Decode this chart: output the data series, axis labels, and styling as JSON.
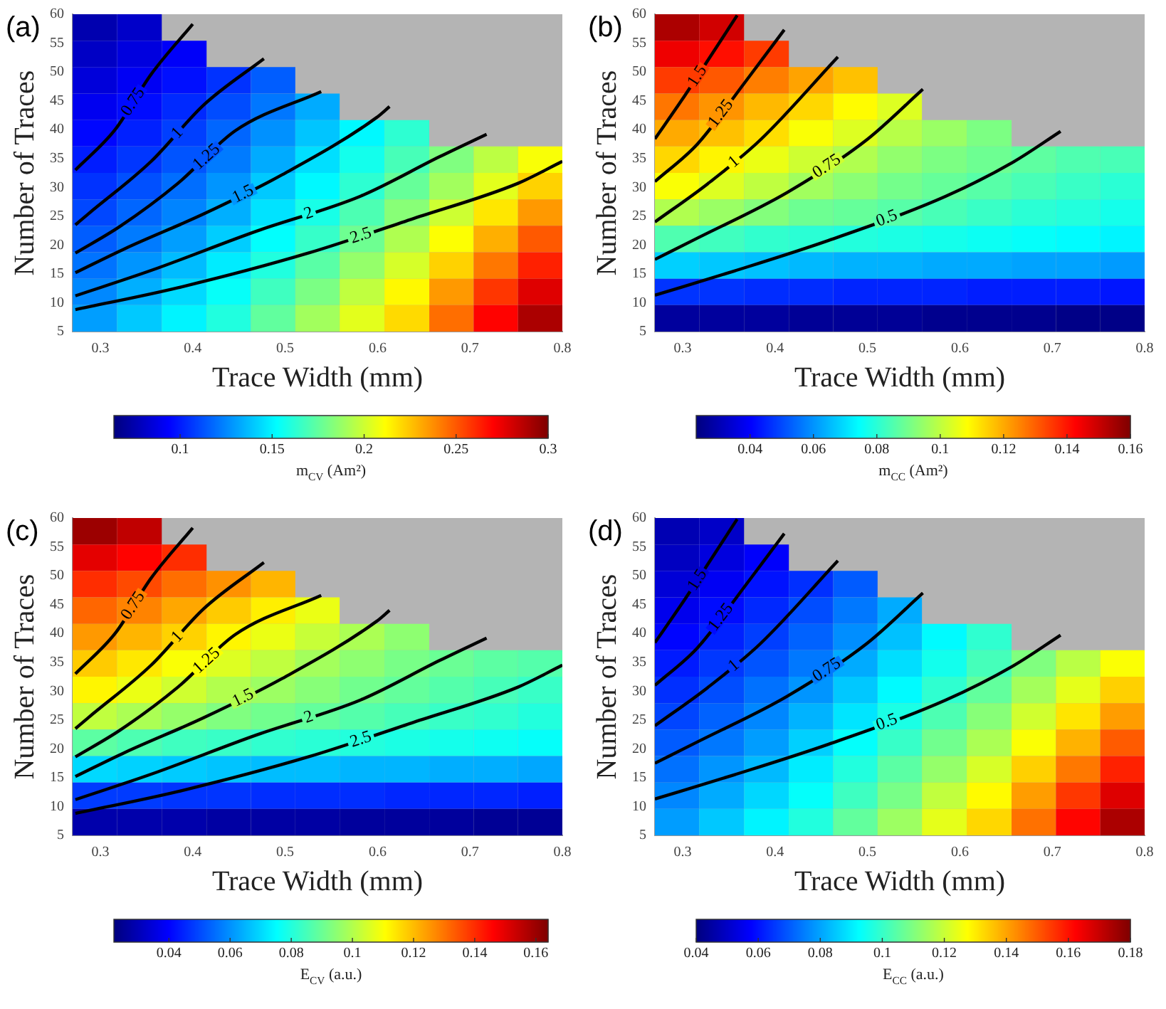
{
  "chart_data": [
    {
      "type": "heatmap",
      "annotations": [
        "(a)"
      ],
      "xlabel": "Trace Width (mm)",
      "ylabel": "Number of Traces",
      "clabel": "m$_{CV}$ (Am²)",
      "clim": [
        0.064,
        0.3
      ],
      "cticks": [
        0.1,
        0.15,
        0.2,
        0.25,
        0.3
      ],
      "x": [
        0.294,
        0.342,
        0.391,
        0.439,
        0.487,
        0.535,
        0.583,
        0.632,
        0.68,
        0.728,
        0.776
      ],
      "xlim": [
        0.27,
        0.8
      ],
      "xticks": [
        0.3,
        0.4,
        0.5,
        0.6,
        0.7,
        0.8
      ],
      "ylim": [
        5,
        60
      ],
      "yticks": [
        5,
        10,
        15,
        20,
        25,
        30,
        35,
        40,
        45,
        50,
        55,
        60
      ],
      "cells": [
        [
          0.075,
          0.081,
          null,
          null,
          null,
          null,
          null,
          null,
          null,
          null,
          null
        ],
        [
          0.08,
          0.086,
          0.092,
          null,
          null,
          null,
          null,
          null,
          null,
          null,
          null
        ],
        [
          0.085,
          0.091,
          0.097,
          0.105,
          0.115,
          null,
          null,
          null,
          null,
          null,
          null
        ],
        [
          0.09,
          0.096,
          0.103,
          0.111,
          0.121,
          0.133,
          null,
          null,
          null,
          null,
          null
        ],
        [
          0.095,
          0.101,
          0.108,
          0.117,
          0.127,
          0.139,
          0.151,
          0.163,
          null,
          null,
          null
        ],
        [
          0.1,
          0.106,
          0.113,
          0.122,
          0.133,
          0.145,
          0.157,
          0.169,
          0.182,
          0.196,
          0.21
        ],
        [
          0.105,
          0.112,
          0.119,
          0.128,
          0.14,
          0.151,
          0.163,
          0.176,
          0.19,
          0.205,
          0.222
        ],
        [
          0.11,
          0.117,
          0.124,
          0.134,
          0.146,
          0.158,
          0.17,
          0.184,
          0.2,
          0.217,
          0.235
        ],
        [
          0.115,
          0.122,
          0.13,
          0.141,
          0.153,
          0.165,
          0.178,
          0.193,
          0.211,
          0.23,
          0.25
        ],
        [
          0.12,
          0.128,
          0.137,
          0.148,
          0.16,
          0.173,
          0.187,
          0.202,
          0.222,
          0.243,
          0.263
        ],
        [
          0.125,
          0.134,
          0.144,
          0.154,
          0.167,
          0.181,
          0.197,
          0.213,
          0.235,
          0.258,
          0.278
        ],
        [
          0.13,
          0.14,
          0.15,
          0.16,
          0.175,
          0.19,
          0.205,
          0.22,
          0.245,
          0.27,
          0.29
        ]
      ],
      "series": [
        {
          "type": "line",
          "name": "0.75",
          "color": "#000000",
          "x": [
            0.273,
            0.316,
            0.355,
            0.4
          ],
          "values": [
            33,
            40,
            49.6,
            58.3
          ]
        },
        {
          "type": "line",
          "name": "1",
          "color": "#000000",
          "x": [
            0.273,
            0.287,
            0.355,
            0.412,
            0.477
          ],
          "values": [
            23.5,
            25.4,
            34.5,
            44.3,
            52.3
          ]
        },
        {
          "type": "line",
          "name": "1.25",
          "color": "#000000",
          "x": [
            0.273,
            0.321,
            0.384,
            0.446,
            0.539
          ],
          "values": [
            18.6,
            23.2,
            30.7,
            39.8,
            46.6
          ]
        },
        {
          "type": "line",
          "name": "1.5",
          "color": "#000000",
          "x": [
            0.273,
            0.327,
            0.412,
            0.497,
            0.599,
            0.613
          ],
          "values": [
            15.2,
            19.4,
            25.4,
            32.2,
            42.1,
            44
          ]
        },
        {
          "type": "line",
          "name": "2",
          "color": "#000000",
          "x": [
            0.273,
            0.355,
            0.469,
            0.582,
            0.667,
            0.718
          ],
          "values": [
            11.2,
            15.6,
            22.4,
            28.5,
            35.3,
            39.2
          ]
        },
        {
          "type": "line",
          "name": "2.5",
          "color": "#000000",
          "x": [
            0.273,
            0.384,
            0.525,
            0.639,
            0.752,
            0.8
          ],
          "values": [
            8.8,
            12.6,
            18.6,
            24.6,
            30.7,
            34.5
          ]
        }
      ]
    },
    {
      "type": "heatmap",
      "annotations": [
        "(b)"
      ],
      "xlabel": "Trace Width (mm)",
      "ylabel": "Number of Traces",
      "clabel": "m$_{CC}$ (Am²)",
      "clim": [
        0.023,
        0.16
      ],
      "cticks": [
        0.04,
        0.06,
        0.08,
        0.1,
        0.12,
        0.14,
        0.16
      ],
      "x": [
        0.294,
        0.342,
        0.391,
        0.439,
        0.487,
        0.535,
        0.583,
        0.632,
        0.68,
        0.728,
        0.776
      ],
      "xlim": [
        0.27,
        0.8
      ],
      "xticks": [
        0.3,
        0.4,
        0.5,
        0.6,
        0.7,
        0.8
      ],
      "ylim": [
        5,
        60
      ],
      "yticks": [
        5,
        10,
        15,
        20,
        25,
        30,
        35,
        40,
        45,
        50,
        55,
        60
      ],
      "cells": [
        [
          0.154,
          0.149,
          null,
          null,
          null,
          null,
          null,
          null,
          null,
          null,
          null
        ],
        [
          0.145,
          0.141,
          0.135,
          null,
          null,
          null,
          null,
          null,
          null,
          null,
          null
        ],
        [
          0.135,
          0.131,
          0.126,
          0.121,
          0.117,
          null,
          null,
          null,
          null,
          null,
          null
        ],
        [
          0.127,
          0.123,
          0.118,
          0.114,
          0.109,
          0.104,
          null,
          null,
          null,
          null,
          null
        ],
        [
          0.12,
          0.117,
          0.113,
          0.108,
          0.104,
          0.099,
          0.095,
          0.091,
          null,
          null,
          null
        ],
        [
          0.114,
          0.11,
          0.106,
          0.102,
          0.098,
          0.094,
          0.091,
          0.089,
          0.087,
          0.085,
          0.084
        ],
        [
          0.108,
          0.104,
          0.1,
          0.096,
          0.093,
          0.09,
          0.088,
          0.086,
          0.084,
          0.082,
          0.08
        ],
        [
          0.098,
          0.095,
          0.092,
          0.089,
          0.088,
          0.086,
          0.084,
          0.082,
          0.08,
          0.079,
          0.077
        ],
        [
          0.085,
          0.083,
          0.081,
          0.08,
          0.079,
          0.078,
          0.077,
          0.076,
          0.075,
          0.074,
          0.073
        ],
        [
          0.068,
          0.067,
          0.066,
          0.065,
          0.064,
          0.064,
          0.063,
          0.063,
          0.062,
          0.062,
          0.061
        ],
        [
          0.047,
          0.047,
          0.046,
          0.046,
          0.045,
          0.045,
          0.045,
          0.044,
          0.044,
          0.044,
          0.043
        ],
        [
          0.027,
          0.027,
          0.027,
          0.026,
          0.026,
          0.026,
          0.025,
          0.025,
          0.025,
          0.024,
          0.024
        ]
      ],
      "series": [
        {
          "type": "line",
          "name": "1.5",
          "color": "#000000",
          "x": [
            0.27,
            0.299,
            0.333,
            0.359
          ],
          "values": [
            38.4,
            45.1,
            53.4,
            59.8
          ]
        },
        {
          "type": "line",
          "name": "1.25",
          "color": "#000000",
          "x": [
            0.27,
            0.316,
            0.367,
            0.41
          ],
          "values": [
            31,
            37.5,
            48.1,
            57.3
          ]
        },
        {
          "type": "line",
          "name": "1",
          "color": "#000000",
          "x": [
            0.27,
            0.327,
            0.384,
            0.468
          ],
          "values": [
            24,
            30.6,
            38.2,
            52.6
          ]
        },
        {
          "type": "line",
          "name": "0.75",
          "color": "#000000",
          "x": [
            0.27,
            0.316,
            0.413,
            0.499,
            0.56
          ],
          "values": [
            17.5,
            21.2,
            29.1,
            38.2,
            47
          ]
        },
        {
          "type": "line",
          "name": "0.5",
          "color": "#000000",
          "x": [
            0.27,
            0.356,
            0.458,
            0.584,
            0.658,
            0.709
          ],
          "values": [
            11.3,
            15.5,
            20.8,
            28.4,
            34.4,
            39.7
          ]
        }
      ]
    },
    {
      "type": "heatmap",
      "annotations": [
        "(c)"
      ],
      "xlabel": "Trace Width (mm)",
      "ylabel": "Number of Traces",
      "clabel": "E$_{CV}$ (a.u.)",
      "clim": [
        0.022,
        0.164
      ],
      "cticks": [
        0.04,
        0.06,
        0.08,
        0.1,
        0.12,
        0.14,
        0.16
      ],
      "x": [
        0.294,
        0.342,
        0.391,
        0.439,
        0.487,
        0.535,
        0.583,
        0.632,
        0.68,
        0.728,
        0.776
      ],
      "xlim": [
        0.27,
        0.8
      ],
      "xticks": [
        0.3,
        0.4,
        0.5,
        0.6,
        0.7,
        0.8
      ],
      "ylim": [
        5,
        60
      ],
      "yticks": [
        5,
        10,
        15,
        20,
        25,
        30,
        35,
        40,
        45,
        50,
        55,
        60
      ],
      "cells": [
        [
          0.16,
          0.155,
          null,
          null,
          null,
          null,
          null,
          null,
          null,
          null,
          null
        ],
        [
          0.15,
          0.146,
          0.14,
          null,
          null,
          null,
          null,
          null,
          null,
          null,
          null
        ],
        [
          0.14,
          0.136,
          0.131,
          0.126,
          0.121,
          null,
          null,
          null,
          null,
          null,
          null
        ],
        [
          0.132,
          0.128,
          0.123,
          0.118,
          0.113,
          0.108,
          null,
          null,
          null,
          null,
          null
        ],
        [
          0.125,
          0.121,
          0.117,
          0.112,
          0.108,
          0.103,
          0.099,
          0.095,
          null,
          null,
          null
        ],
        [
          0.118,
          0.114,
          0.11,
          0.106,
          0.102,
          0.098,
          0.095,
          0.092,
          0.09,
          0.088,
          0.087
        ],
        [
          0.112,
          0.108,
          0.104,
          0.1,
          0.097,
          0.094,
          0.091,
          0.089,
          0.087,
          0.085,
          0.083
        ],
        [
          0.102,
          0.099,
          0.096,
          0.093,
          0.091,
          0.089,
          0.087,
          0.085,
          0.083,
          0.082,
          0.08
        ],
        [
          0.088,
          0.086,
          0.084,
          0.083,
          0.082,
          0.081,
          0.08,
          0.079,
          0.078,
          0.077,
          0.076
        ],
        [
          0.07,
          0.069,
          0.068,
          0.067,
          0.066,
          0.066,
          0.065,
          0.065,
          0.064,
          0.064,
          0.063
        ],
        [
          0.048,
          0.048,
          0.047,
          0.047,
          0.046,
          0.046,
          0.046,
          0.045,
          0.045,
          0.045,
          0.044
        ],
        [
          0.028,
          0.028,
          0.028,
          0.027,
          0.027,
          0.027,
          0.026,
          0.026,
          0.026,
          0.025,
          0.025
        ]
      ],
      "series": [
        {
          "type": "line",
          "name": "0.75",
          "color": "#000000",
          "x": [
            0.273,
            0.316,
            0.355,
            0.4
          ],
          "values": [
            33,
            40,
            49.6,
            58.3
          ]
        },
        {
          "type": "line",
          "name": "1",
          "color": "#000000",
          "x": [
            0.273,
            0.287,
            0.355,
            0.412,
            0.477
          ],
          "values": [
            23.5,
            25.4,
            34.5,
            44.3,
            52.3
          ]
        },
        {
          "type": "line",
          "name": "1.25",
          "color": "#000000",
          "x": [
            0.273,
            0.321,
            0.384,
            0.446,
            0.539
          ],
          "values": [
            18.6,
            23.2,
            30.7,
            39.8,
            46.6
          ]
        },
        {
          "type": "line",
          "name": "1.5",
          "color": "#000000",
          "x": [
            0.273,
            0.327,
            0.412,
            0.497,
            0.599,
            0.613
          ],
          "values": [
            15.2,
            19.4,
            25.4,
            32.2,
            42.1,
            44
          ]
        },
        {
          "type": "line",
          "name": "2",
          "color": "#000000",
          "x": [
            0.273,
            0.355,
            0.469,
            0.582,
            0.667,
            0.718
          ],
          "values": [
            11.2,
            15.6,
            22.4,
            28.5,
            35.3,
            39.2
          ]
        },
        {
          "type": "line",
          "name": "2.5",
          "color": "#000000",
          "x": [
            0.273,
            0.384,
            0.525,
            0.639,
            0.752,
            0.8
          ],
          "values": [
            8.8,
            12.6,
            18.6,
            24.6,
            30.7,
            34.5
          ]
        }
      ]
    },
    {
      "type": "heatmap",
      "annotations": [
        "(d)"
      ],
      "xlabel": "Trace Width (mm)",
      "ylabel": "Number of Traces",
      "clabel": "E$_{CC}$ (a.u.)",
      "clim": [
        0.04,
        0.18
      ],
      "cticks": [
        0.04,
        0.06,
        0.08,
        0.1,
        0.12,
        0.14,
        0.16,
        0.18
      ],
      "x": [
        0.294,
        0.342,
        0.391,
        0.439,
        0.487,
        0.535,
        0.583,
        0.632,
        0.68,
        0.728,
        0.776
      ],
      "xlim": [
        0.27,
        0.8
      ],
      "xticks": [
        0.3,
        0.4,
        0.5,
        0.6,
        0.7,
        0.8
      ],
      "ylim": [
        5,
        60
      ],
      "yticks": [
        5,
        10,
        15,
        20,
        25,
        30,
        35,
        40,
        45,
        50,
        55,
        60
      ],
      "cells": [
        [
          0.047,
          0.05,
          null,
          null,
          null,
          null,
          null,
          null,
          null,
          null,
          null
        ],
        [
          0.049,
          0.053,
          0.057,
          null,
          null,
          null,
          null,
          null,
          null,
          null,
          null
        ],
        [
          0.052,
          0.056,
          0.06,
          0.064,
          0.07,
          null,
          null,
          null,
          null,
          null,
          null
        ],
        [
          0.055,
          0.059,
          0.063,
          0.068,
          0.074,
          0.081,
          null,
          null,
          null,
          null,
          null
        ],
        [
          0.058,
          0.062,
          0.066,
          0.071,
          0.077,
          0.084,
          0.092,
          0.099,
          null,
          null,
          null
        ],
        [
          0.061,
          0.065,
          0.069,
          0.074,
          0.081,
          0.088,
          0.095,
          0.102,
          0.11,
          0.118,
          0.127
        ],
        [
          0.064,
          0.068,
          0.073,
          0.078,
          0.085,
          0.092,
          0.099,
          0.106,
          0.115,
          0.124,
          0.134
        ],
        [
          0.067,
          0.071,
          0.076,
          0.082,
          0.089,
          0.096,
          0.103,
          0.111,
          0.121,
          0.131,
          0.141
        ],
        [
          0.07,
          0.074,
          0.079,
          0.086,
          0.093,
          0.1,
          0.108,
          0.116,
          0.127,
          0.138,
          0.15
        ],
        [
          0.073,
          0.078,
          0.083,
          0.09,
          0.097,
          0.105,
          0.113,
          0.122,
          0.134,
          0.146,
          0.158
        ],
        [
          0.076,
          0.081,
          0.087,
          0.093,
          0.101,
          0.109,
          0.119,
          0.128,
          0.141,
          0.155,
          0.167
        ],
        [
          0.079,
          0.085,
          0.091,
          0.097,
          0.106,
          0.114,
          0.124,
          0.133,
          0.147,
          0.162,
          0.174
        ]
      ],
      "series": [
        {
          "type": "line",
          "name": "1.5",
          "color": "#000000",
          "x": [
            0.27,
            0.299,
            0.333,
            0.359
          ],
          "values": [
            38.4,
            45.1,
            53.4,
            59.8
          ]
        },
        {
          "type": "line",
          "name": "1.25",
          "color": "#000000",
          "x": [
            0.27,
            0.316,
            0.367,
            0.41
          ],
          "values": [
            31,
            37.5,
            48.1,
            57.3
          ]
        },
        {
          "type": "line",
          "name": "1",
          "color": "#000000",
          "x": [
            0.27,
            0.327,
            0.384,
            0.468
          ],
          "values": [
            24,
            30.6,
            38.2,
            52.6
          ]
        },
        {
          "type": "line",
          "name": "0.75",
          "color": "#000000",
          "x": [
            0.27,
            0.316,
            0.413,
            0.499,
            0.56
          ],
          "values": [
            17.5,
            21.2,
            29.1,
            38.2,
            47
          ]
        },
        {
          "type": "line",
          "name": "0.5",
          "color": "#000000",
          "x": [
            0.27,
            0.356,
            0.458,
            0.584,
            0.658,
            0.709
          ],
          "values": [
            11.3,
            15.5,
            20.8,
            28.4,
            34.4,
            39.7
          ]
        }
      ]
    }
  ]
}
